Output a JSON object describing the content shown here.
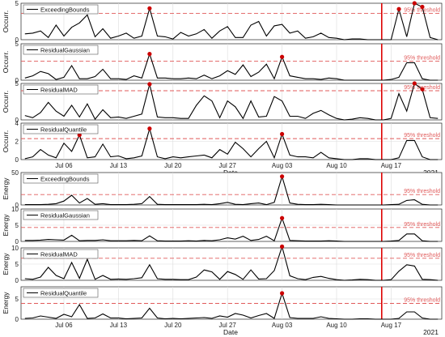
{
  "figure": {
    "date_label": "Date",
    "year_label": "2021",
    "threshold_label": "95% threshold",
    "x_ticks": [
      "Jul 06",
      "Jul 13",
      "Jul 20",
      "Jul 27",
      "Aug 03",
      "Aug 10",
      "Aug 17"
    ],
    "event_day": 46,
    "colors": {
      "line": "#000000",
      "threshold": "#e05a5a",
      "marker": "#cc0000",
      "event": "#dd0000",
      "grid": "#dcdcdc"
    }
  },
  "chart_data": [
    {
      "type": "line",
      "group": "occurrence",
      "ylabel": "Occurr.",
      "ylim": [
        0,
        5
      ],
      "yticks": [
        0,
        5
      ],
      "threshold": 3.6,
      "legend": "ExceedingBounds",
      "x_start": "2021-07-01",
      "x_end": "2021-08-22",
      "values": [
        0.8,
        0.9,
        1.2,
        0.3,
        2.0,
        0.5,
        1.7,
        2.3,
        3.4,
        0.4,
        1.5,
        0.2,
        0.5,
        0.9,
        0.2,
        0.5,
        4.3,
        0.5,
        0.4,
        0.1,
        1.0,
        0.5,
        0.8,
        1.4,
        0.2,
        1.2,
        1.8,
        0.3,
        0.3,
        2.0,
        2.5,
        0.5,
        1.9,
        2.1,
        0.9,
        1.2,
        0.2,
        0.4,
        0.9,
        0.3,
        0.2,
        0.0,
        0.1,
        0.1,
        0.0,
        0.0,
        0.0,
        0.0,
        4.2,
        0.4,
        5.0,
        4.5,
        0.3,
        0.0
      ],
      "markers": [
        16,
        48,
        50,
        51
      ]
    },
    {
      "type": "line",
      "group": "occurrence",
      "ylabel": "Occurr.",
      "ylim": [
        0,
        5
      ],
      "yticks": [
        0,
        5
      ],
      "threshold": 2.6,
      "legend": "ResidualGaussian",
      "values": [
        0.3,
        0.6,
        1.2,
        0.9,
        0.1,
        0.4,
        2.0,
        0.2,
        0.2,
        0.5,
        1.5,
        0.2,
        0.2,
        0.1,
        0.6,
        0.3,
        3.6,
        0.3,
        0.3,
        0.2,
        0.2,
        0.3,
        0.2,
        0.7,
        0.2,
        0.6,
        1.3,
        0.8,
        2.1,
        0.5,
        1.1,
        2.2,
        0.2,
        3.2,
        0.6,
        0.4,
        0.2,
        0.2,
        0.1,
        0.3,
        0.2,
        0.0,
        0.0,
        0.0,
        0.0,
        0.0,
        0.0,
        0.1,
        0.4,
        2.4,
        2.4,
        0.2,
        0.0,
        0.0
      ],
      "markers": [
        16,
        33
      ]
    },
    {
      "type": "line",
      "group": "occurrence",
      "ylabel": "Occurr.",
      "ylim": [
        0,
        5
      ],
      "yticks": [
        0,
        5
      ],
      "threshold": 4.0,
      "legend": "ResidualMAD",
      "values": [
        0.6,
        0.3,
        1.0,
        2.4,
        1.2,
        0.5,
        2.0,
        0.4,
        2.2,
        0.1,
        1.4,
        0.3,
        0.4,
        0.2,
        0.5,
        0.8,
        4.9,
        0.4,
        0.3,
        0.3,
        0.2,
        0.2,
        2.0,
        3.3,
        2.6,
        0.3,
        2.6,
        1.8,
        0.2,
        2.6,
        0.4,
        0.5,
        3.2,
        2.6,
        0.5,
        0.5,
        0.2,
        0.9,
        1.3,
        0.7,
        0.2,
        0.0,
        0.1,
        0.3,
        0.2,
        0.0,
        0.0,
        0.2,
        3.6,
        1.2,
        5.0,
        4.2,
        0.3,
        0.2
      ],
      "markers": [
        16,
        50,
        51
      ]
    },
    {
      "type": "line",
      "group": "occurrence",
      "ylabel": "Occurr.",
      "ylim": [
        0,
        4
      ],
      "yticks": [
        0,
        2,
        4
      ],
      "threshold": 2.3,
      "legend": "ResidualQuantile",
      "values": [
        0.1,
        0.3,
        1.1,
        0.5,
        0.2,
        1.8,
        0.9,
        2.7,
        0.2,
        0.3,
        1.7,
        0.3,
        0.4,
        0.1,
        0.2,
        0.4,
        3.4,
        0.3,
        0.1,
        0.3,
        0.2,
        0.3,
        0.4,
        0.5,
        0.2,
        1.1,
        0.6,
        1.9,
        1.2,
        0.3,
        1.2,
        2.0,
        0.2,
        2.8,
        0.5,
        0.3,
        0.3,
        0.2,
        0.8,
        0.2,
        0.1,
        0.0,
        0.0,
        0.1,
        0.1,
        0.0,
        0.0,
        0.0,
        0.2,
        2.1,
        2.1,
        0.3,
        0.0,
        0.0
      ],
      "markers": [
        7,
        16,
        33
      ]
    },
    {
      "type": "line",
      "group": "energy",
      "ylabel": "Energy",
      "ylim": [
        0,
        50
      ],
      "yticks": [
        0,
        50
      ],
      "threshold": 16,
      "legend": "ExceedingBounds",
      "values": [
        0.5,
        0.5,
        0.5,
        1.0,
        2.0,
        6.0,
        15.0,
        3.0,
        10.0,
        1.0,
        2.0,
        0.5,
        0.5,
        0.5,
        1.0,
        2.0,
        13.0,
        1.0,
        0.5,
        0.5,
        0.5,
        0.5,
        0.5,
        1.0,
        0.5,
        2.0,
        4.0,
        1.0,
        0.5,
        2.0,
        3.0,
        0.5,
        4.0,
        44.0,
        3.0,
        1.0,
        0.5,
        0.5,
        1.0,
        0.5,
        0.0,
        0.0,
        0.0,
        0.0,
        0.0,
        0.0,
        0.0,
        0.5,
        1.0,
        7.0,
        8.0,
        1.0,
        0.0,
        0.0
      ],
      "markers": [
        33
      ]
    },
    {
      "type": "line",
      "group": "energy",
      "ylabel": "Energy",
      "ylim": [
        0,
        10
      ],
      "yticks": [
        0,
        5,
        10
      ],
      "threshold": 4.3,
      "legend": "ResidualGaussian",
      "values": [
        0.3,
        0.3,
        0.4,
        0.6,
        0.5,
        0.4,
        1.9,
        0.2,
        0.3,
        0.3,
        0.5,
        0.2,
        0.2,
        0.2,
        0.3,
        0.2,
        1.7,
        0.2,
        0.1,
        0.1,
        0.1,
        0.2,
        0.1,
        0.3,
        0.2,
        0.5,
        1.1,
        0.7,
        1.6,
        0.3,
        0.6,
        1.6,
        0.2,
        7.2,
        0.3,
        0.2,
        0.1,
        0.1,
        0.1,
        0.2,
        0.1,
        0.0,
        0.0,
        0.0,
        0.0,
        0.0,
        0.0,
        0.1,
        0.3,
        2.3,
        2.3,
        0.2,
        0.0,
        0.0
      ],
      "markers": [
        33
      ]
    },
    {
      "type": "line",
      "group": "energy",
      "ylabel": "Energy",
      "ylim": [
        0,
        10
      ],
      "yticks": [
        0,
        5,
        10
      ],
      "threshold": 6.8,
      "legend": "ResidualMAD",
      "values": [
        0.5,
        0.3,
        1.0,
        4.0,
        1.5,
        0.5,
        5.5,
        0.6,
        6.5,
        0.3,
        1.5,
        0.3,
        0.4,
        0.3,
        0.5,
        0.8,
        4.8,
        0.5,
        0.3,
        0.3,
        0.2,
        0.2,
        1.0,
        3.2,
        2.6,
        0.3,
        2.7,
        1.8,
        0.3,
        3.2,
        0.4,
        0.5,
        3.0,
        10.4,
        1.4,
        0.5,
        0.2,
        0.9,
        1.2,
        0.6,
        0.2,
        0.0,
        0.1,
        0.3,
        0.2,
        0.0,
        0.0,
        0.2,
        2.8,
        4.8,
        4.4,
        0.3,
        0.2,
        0.0
      ],
      "markers": [
        33
      ]
    },
    {
      "type": "line",
      "group": "energy",
      "ylabel": "Energy",
      "ylim": [
        0,
        8
      ],
      "yticks": [
        0,
        5
      ],
      "threshold": 3.9,
      "legend": "ResidualQuantile",
      "values": [
        0.2,
        0.3,
        0.8,
        0.5,
        0.2,
        1.2,
        0.6,
        3.6,
        0.2,
        0.3,
        1.3,
        0.3,
        0.3,
        0.1,
        0.2,
        0.3,
        2.7,
        0.3,
        0.1,
        0.2,
        0.1,
        0.2,
        0.3,
        0.4,
        0.2,
        0.8,
        0.5,
        1.4,
        1.0,
        0.3,
        0.9,
        1.4,
        0.2,
        6.4,
        0.4,
        0.2,
        0.2,
        0.2,
        0.6,
        0.2,
        0.1,
        0.0,
        0.0,
        0.1,
        0.1,
        0.0,
        0.0,
        0.0,
        0.2,
        1.8,
        1.8,
        0.3,
        0.0,
        0.0
      ],
      "markers": [
        33
      ]
    }
  ]
}
